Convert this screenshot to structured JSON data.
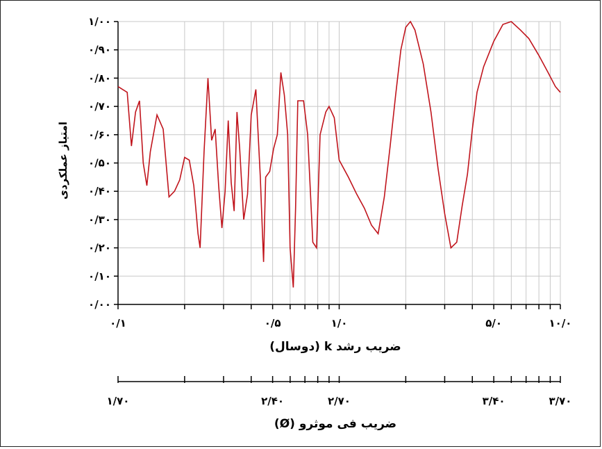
{
  "chart_data": {
    "type": "line",
    "ylabel": "امتیاز عملکردی",
    "xlabel": "ضریب رشد k (دوسال)",
    "x2label": "ضریب فی موثرو (Ø)",
    "x_scale": "log",
    "xlim": [
      0.1,
      10.0
    ],
    "ylim": [
      0.0,
      1.0
    ],
    "grid": true,
    "line_color": "#c0141c",
    "y_ticks": [
      {
        "value": 0.0,
        "label": "۰/۰۰"
      },
      {
        "value": 0.1,
        "label": "۰/۱۰"
      },
      {
        "value": 0.2,
        "label": "۰/۲۰"
      },
      {
        "value": 0.3,
        "label": "۰/۳۰"
      },
      {
        "value": 0.4,
        "label": "۰/۴۰"
      },
      {
        "value": 0.5,
        "label": "۰/۵۰"
      },
      {
        "value": 0.6,
        "label": "۰/۶۰"
      },
      {
        "value": 0.7,
        "label": "۰/۷۰"
      },
      {
        "value": 0.8,
        "label": "۰/۸۰"
      },
      {
        "value": 0.9,
        "label": "۰/۹۰"
      },
      {
        "value": 1.0,
        "label": "۱/۰۰"
      }
    ],
    "x_ticks": [
      {
        "value": 0.1,
        "label": "۰/۱"
      },
      {
        "value": 0.5,
        "label": "۰/۵"
      },
      {
        "value": 1.0,
        "label": "۱/۰"
      },
      {
        "value": 5.0,
        "label": "۵/۰"
      },
      {
        "value": 10.0,
        "label": "۱۰/۰"
      }
    ],
    "x2_ticks": [
      {
        "value": 0.1,
        "label": "۱/۷۰"
      },
      {
        "value": 0.5,
        "label": "۲/۴۰"
      },
      {
        "value": 1.0,
        "label": "۲/۷۰"
      },
      {
        "value": 5.0,
        "label": "۳/۴۰"
      },
      {
        "value": 10.0,
        "label": "۳/۷۰"
      }
    ],
    "series": [
      {
        "points": [
          [
            0.1,
            0.77
          ],
          [
            0.11,
            0.75
          ],
          [
            0.115,
            0.56
          ],
          [
            0.12,
            0.68
          ],
          [
            0.125,
            0.72
          ],
          [
            0.13,
            0.5
          ],
          [
            0.135,
            0.42
          ],
          [
            0.14,
            0.54
          ],
          [
            0.15,
            0.67
          ],
          [
            0.16,
            0.62
          ],
          [
            0.17,
            0.38
          ],
          [
            0.18,
            0.4
          ],
          [
            0.19,
            0.44
          ],
          [
            0.2,
            0.52
          ],
          [
            0.21,
            0.51
          ],
          [
            0.22,
            0.42
          ],
          [
            0.23,
            0.25
          ],
          [
            0.235,
            0.2
          ],
          [
            0.245,
            0.54
          ],
          [
            0.255,
            0.8
          ],
          [
            0.265,
            0.58
          ],
          [
            0.275,
            0.62
          ],
          [
            0.285,
            0.42
          ],
          [
            0.295,
            0.27
          ],
          [
            0.305,
            0.4
          ],
          [
            0.315,
            0.65
          ],
          [
            0.325,
            0.43
          ],
          [
            0.335,
            0.33
          ],
          [
            0.345,
            0.68
          ],
          [
            0.355,
            0.55
          ],
          [
            0.37,
            0.3
          ],
          [
            0.385,
            0.39
          ],
          [
            0.4,
            0.67
          ],
          [
            0.42,
            0.76
          ],
          [
            0.44,
            0.45
          ],
          [
            0.455,
            0.15
          ],
          [
            0.465,
            0.45
          ],
          [
            0.485,
            0.47
          ],
          [
            0.505,
            0.55
          ],
          [
            0.525,
            0.6
          ],
          [
            0.545,
            0.82
          ],
          [
            0.565,
            0.74
          ],
          [
            0.585,
            0.6
          ],
          [
            0.6,
            0.2
          ],
          [
            0.62,
            0.06
          ],
          [
            0.635,
            0.34
          ],
          [
            0.65,
            0.72
          ],
          [
            0.69,
            0.72
          ],
          [
            0.72,
            0.6
          ],
          [
            0.76,
            0.22
          ],
          [
            0.79,
            0.2
          ],
          [
            0.82,
            0.6
          ],
          [
            0.87,
            0.68
          ],
          [
            0.9,
            0.7
          ],
          [
            0.95,
            0.66
          ],
          [
            1.0,
            0.51
          ],
          [
            1.1,
            0.45
          ],
          [
            1.2,
            0.39
          ],
          [
            1.3,
            0.34
          ],
          [
            1.4,
            0.28
          ],
          [
            1.5,
            0.25
          ],
          [
            1.6,
            0.38
          ],
          [
            1.7,
            0.56
          ],
          [
            1.8,
            0.74
          ],
          [
            1.9,
            0.9
          ],
          [
            2.0,
            0.98
          ],
          [
            2.1,
            1.0
          ],
          [
            2.2,
            0.97
          ],
          [
            2.4,
            0.85
          ],
          [
            2.6,
            0.68
          ],
          [
            2.8,
            0.48
          ],
          [
            3.0,
            0.32
          ],
          [
            3.2,
            0.2
          ],
          [
            3.4,
            0.22
          ],
          [
            3.6,
            0.35
          ],
          [
            3.8,
            0.46
          ],
          [
            4.0,
            0.62
          ],
          [
            4.2,
            0.75
          ],
          [
            4.5,
            0.84
          ],
          [
            5.0,
            0.93
          ],
          [
            5.5,
            0.99
          ],
          [
            6.0,
            1.0
          ],
          [
            6.6,
            0.97
          ],
          [
            7.2,
            0.94
          ],
          [
            8.0,
            0.88
          ],
          [
            8.8,
            0.82
          ],
          [
            9.5,
            0.77
          ],
          [
            10.0,
            0.75
          ]
        ]
      }
    ]
  }
}
